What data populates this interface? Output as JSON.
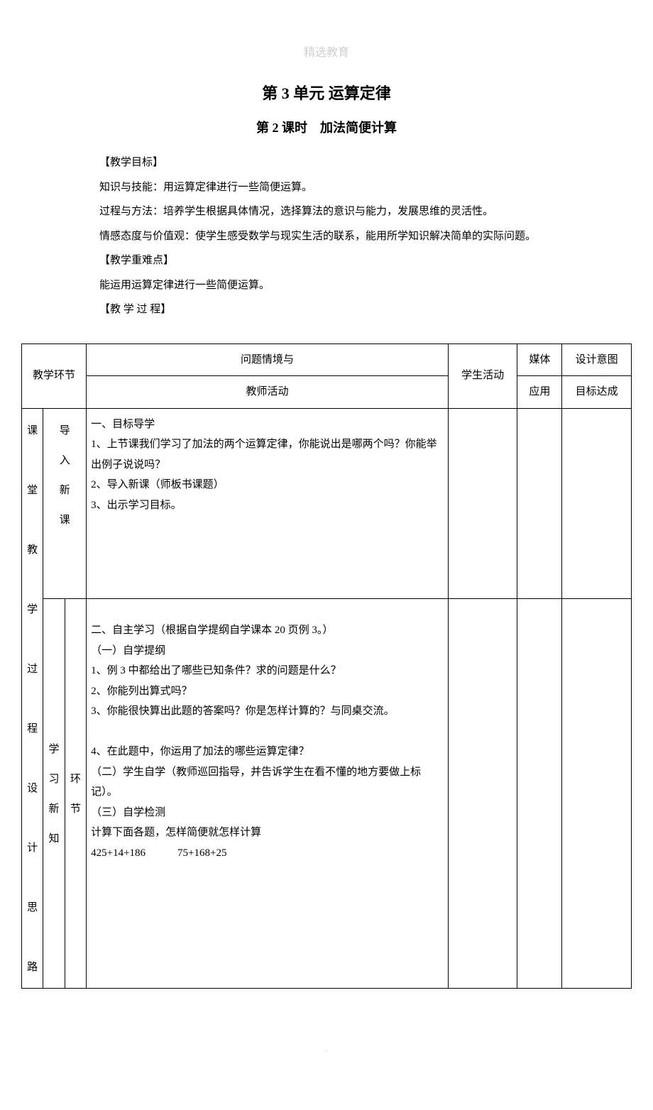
{
  "watermark": "精选教育",
  "title_main": "第 3 单元  运算定律",
  "title_sub": "第 2 课时　加法简便计算",
  "sections": {
    "goals_label": "【教学目标】",
    "knowledge": "知识与技能：用运算定律进行一些简便运算。",
    "process": "过程与方法：培养学生根据具体情况，选择算法的意识与能力，发展思维的灵活性。",
    "attitude": "情感态度与价值观：使学生感受数学与现实生活的联系，能用所学知识解决简单的实际问题。",
    "difficulty_label": "【教学重难点】",
    "difficulty_text": "  能运用运算定律进行一些简便运算。",
    "process_label": "【教  学  过  程】"
  },
  "table": {
    "headers": {
      "col1": "教学环节",
      "col2_line1": "问题情境与",
      "col2_line2": "教师活动",
      "col3": "学生活动",
      "col4_line1": "媒体",
      "col4_line2": "应用",
      "col5_line1": "设计意图",
      "col5_line2": "目标达成"
    },
    "side_label": "课堂教学过程设计思路",
    "rows": [
      {
        "phase": "导入新课",
        "sub": "",
        "content": "一、目标导学\n1、上节课我们学习了加法的两个运算定律，你能说出是哪两个吗？你能举出例子说说吗？\n2、导入新课（师板书课题）\n3、出示学习目标。"
      },
      {
        "phase": "学习新知",
        "sub": "环节",
        "content": "二、自主学习（根据自学提纲自学课本 20 页例 3。）\n（一）自学提纲\n1、例 3 中都给出了哪些已知条件？求的问题是什么？\n2、你能列出算式吗？\n3、你能很快算出此题的答案吗？你是怎样计算的？与同桌交流。\n\n4、在此题中，你运用了加法的哪些运算定律？\n（二）学生自学（教师巡回指导，并告诉学生在看不懂的地方要做上标记）。\n（三）自学检测\n计算下面各题，怎样简便就怎样计算\n425+14+186　　　75+168+25"
      }
    ]
  },
  "footer": "."
}
